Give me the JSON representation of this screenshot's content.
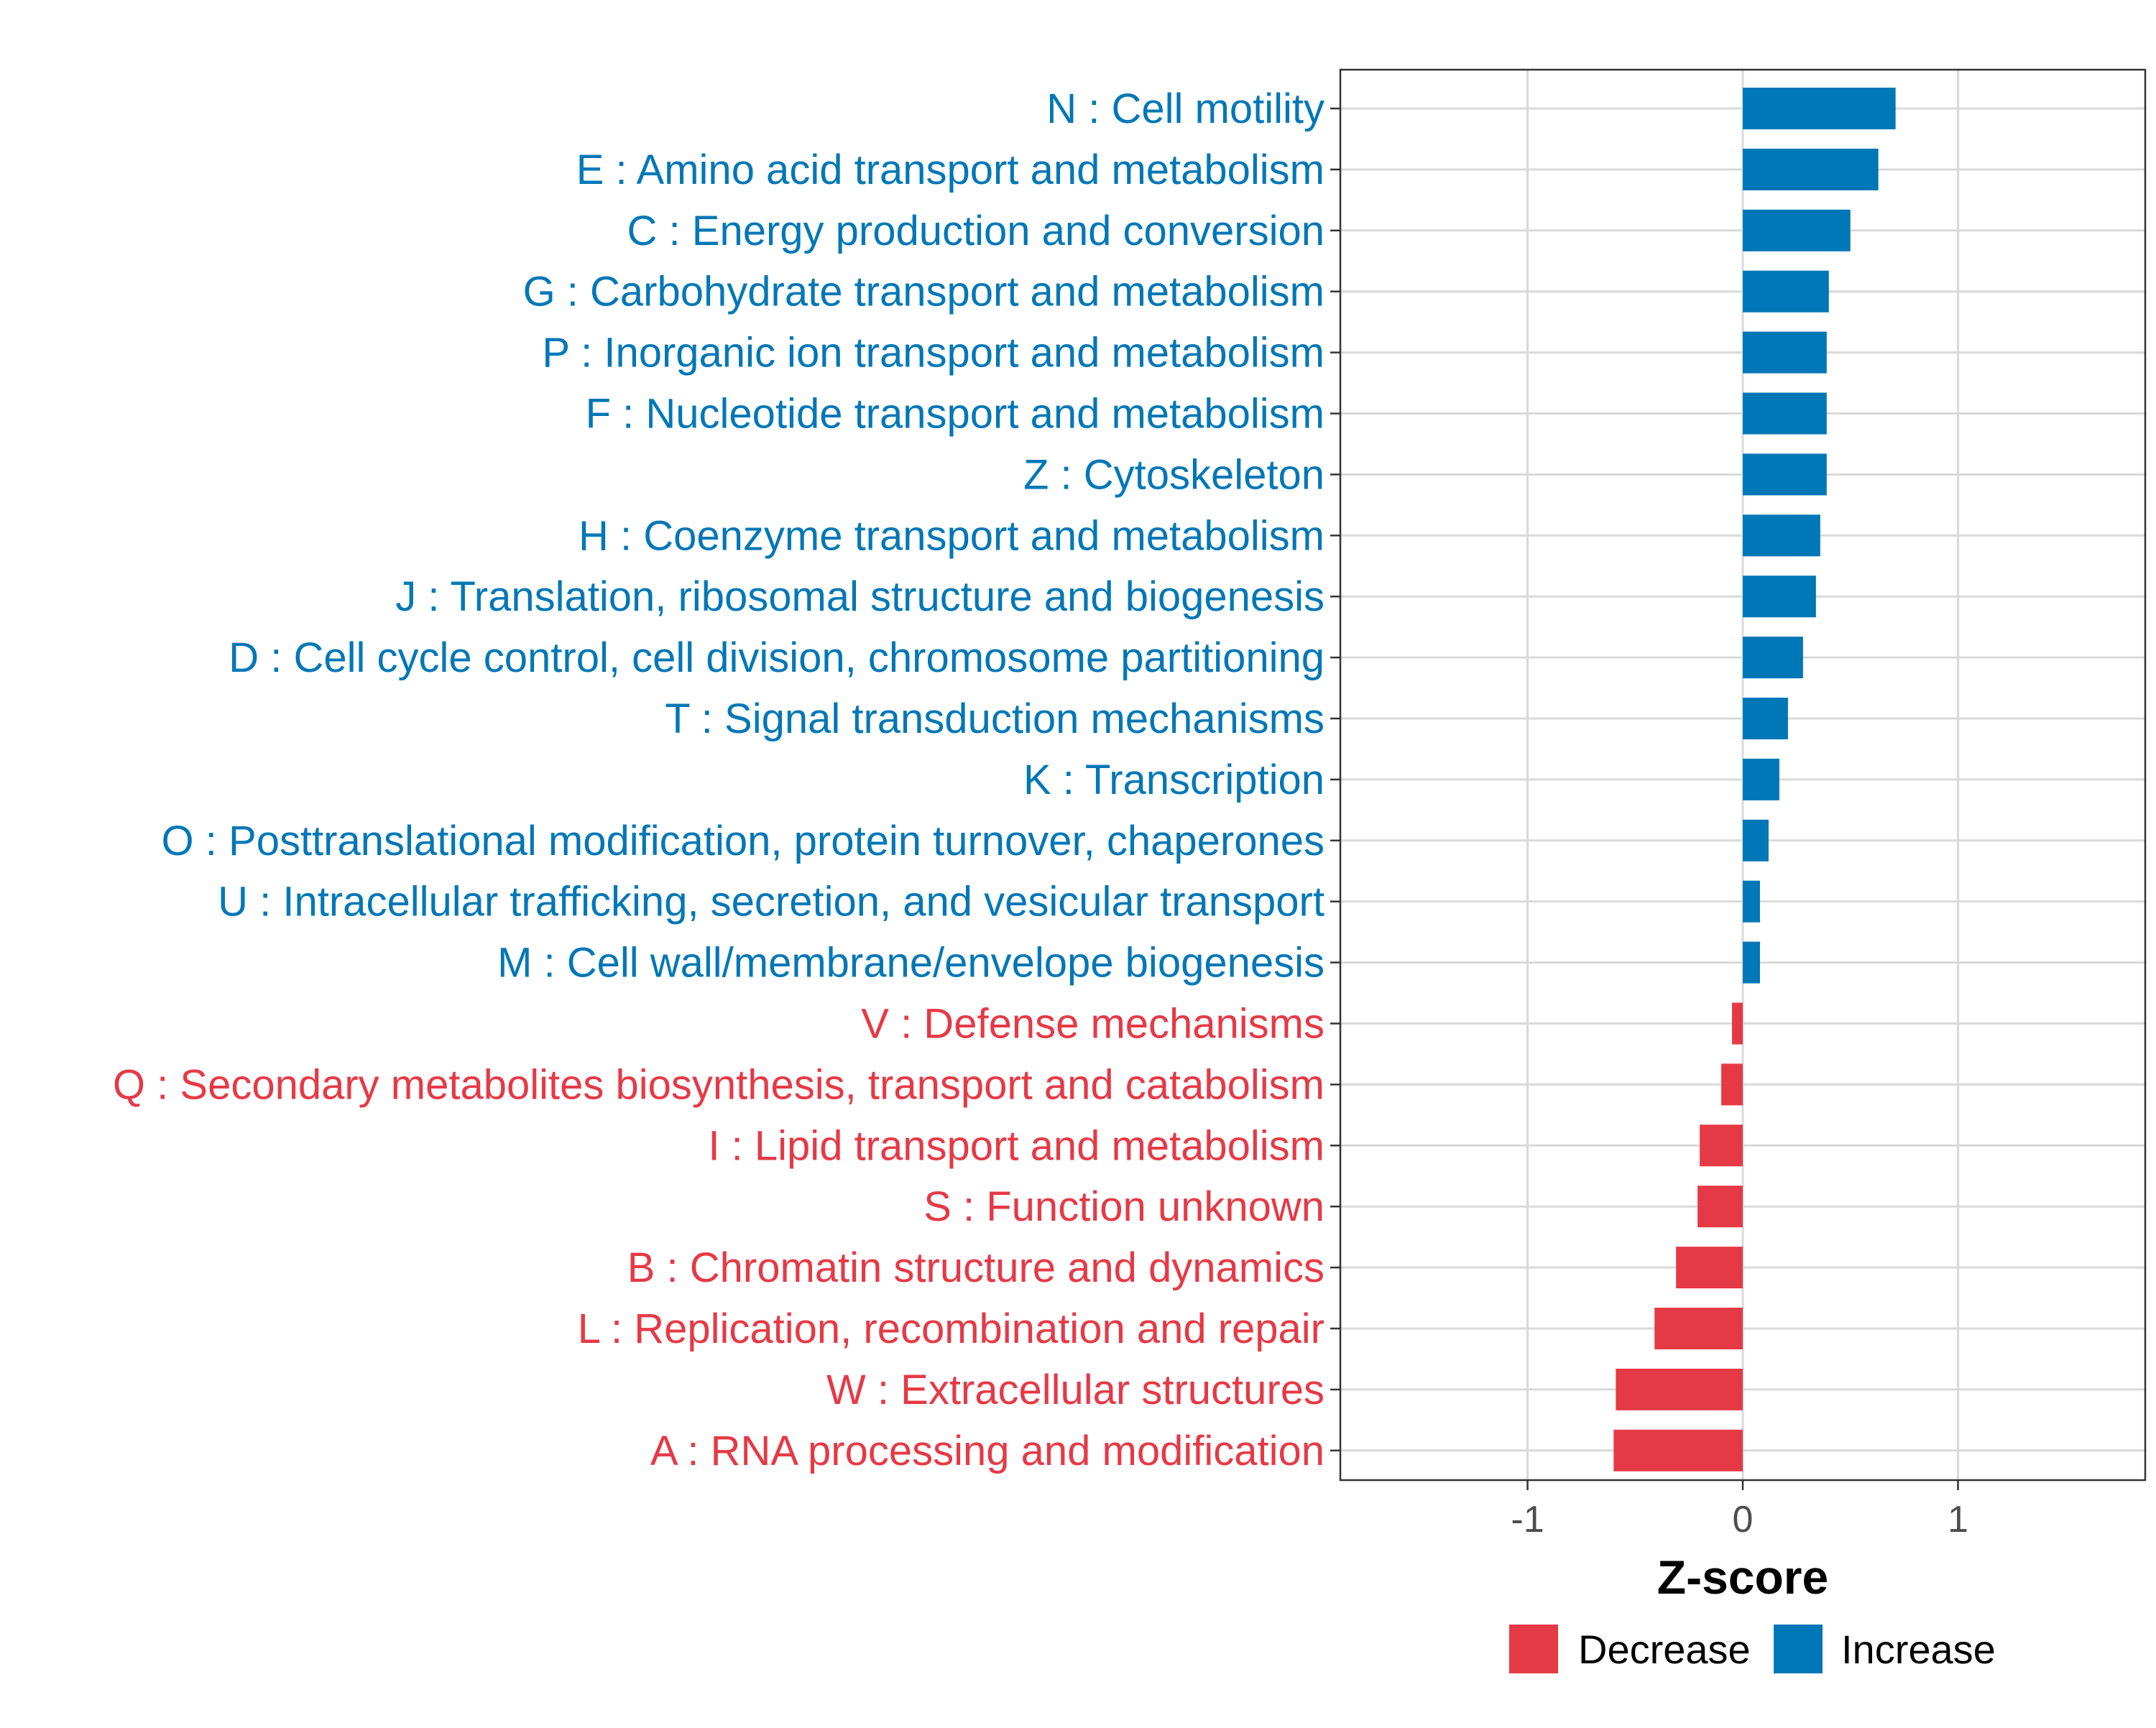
{
  "chart_data": {
    "type": "bar",
    "orientation": "horizontal",
    "xlabel": "Z-score",
    "ylabel": "",
    "xlim": [
      -1.87,
      1.87
    ],
    "x_ticks": [
      -1,
      0,
      1
    ],
    "x_tick_labels": [
      "-1",
      "0",
      "1"
    ],
    "grid": true,
    "legend_position": "bottom",
    "colors": {
      "Decrease": "#e63946",
      "Increase": "#0077b6"
    },
    "legend": [
      {
        "name": "Decrease",
        "color": "#e63946"
      },
      {
        "name": "Increase",
        "color": "#0077b6"
      }
    ],
    "categories": [
      "N : Cell motility",
      "E : Amino acid transport and metabolism",
      "C : Energy production and conversion",
      "G : Carbohydrate transport and metabolism",
      "P : Inorganic ion transport and metabolism",
      "F : Nucleotide transport and metabolism",
      "Z : Cytoskeleton",
      "H : Coenzyme transport and metabolism",
      "J : Translation, ribosomal structure and biogenesis",
      "D : Cell cycle control, cell division, chromosome partitioning",
      "T : Signal transduction mechanisms",
      "K : Transcription",
      "O : Posttranslational modification, protein turnover, chaperones",
      "U : Intracellular trafficking, secretion, and vesicular transport",
      "M : Cell wall/membrane/envelope biogenesis",
      "V : Defense mechanisms",
      "Q : Secondary metabolites biosynthesis, transport and catabolism",
      "I : Lipid transport and metabolism",
      "S : Function unknown",
      "B : Chromatin structure and dynamics",
      "L : Replication, recombination and repair",
      "W : Extracellular structures",
      "A : RNA processing and modification"
    ],
    "values": [
      0.71,
      0.63,
      0.5,
      0.4,
      0.39,
      0.39,
      0.39,
      0.36,
      0.34,
      0.28,
      0.21,
      0.17,
      0.12,
      0.08,
      0.08,
      -0.05,
      -0.1,
      -0.2,
      -0.21,
      -0.31,
      -0.41,
      -0.59,
      -0.6
    ],
    "group": [
      "Increase",
      "Increase",
      "Increase",
      "Increase",
      "Increase",
      "Increase",
      "Increase",
      "Increase",
      "Increase",
      "Increase",
      "Increase",
      "Increase",
      "Increase",
      "Increase",
      "Increase",
      "Decrease",
      "Decrease",
      "Decrease",
      "Decrease",
      "Decrease",
      "Decrease",
      "Decrease",
      "Decrease"
    ]
  }
}
